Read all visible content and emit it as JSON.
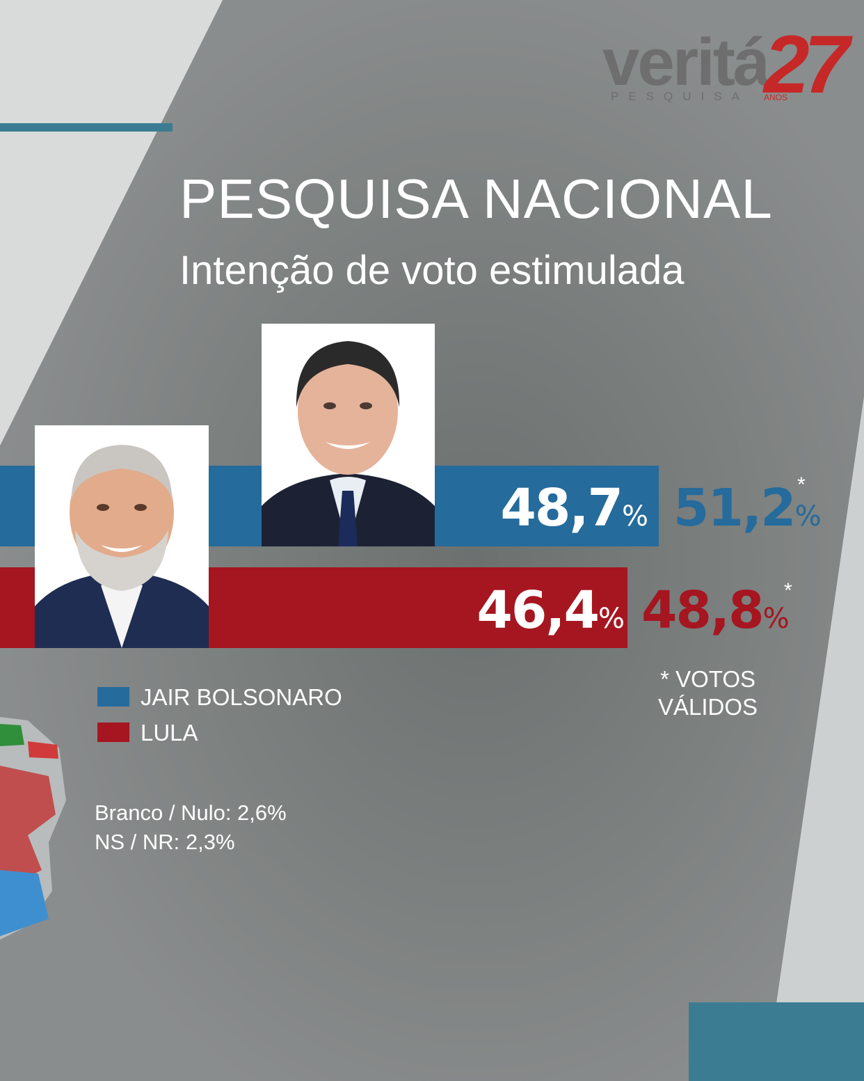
{
  "logo": {
    "brand": "veritá",
    "sub": "PESQUISA",
    "years": "27",
    "years_label": "ANOS"
  },
  "header": {
    "title": "PESQUISA NACIONAL",
    "subtitle": "Intenção de voto estimulada"
  },
  "chart_data": {
    "type": "bar",
    "title": "PESQUISA NACIONAL",
    "subtitle": "Intenção de voto estimulada",
    "categories": [
      "JAIR BOLSONARO",
      "LULA"
    ],
    "series": [
      {
        "values": [
          48.7,
          46.4
        ]
      },
      {
        "name": "* VOTOS VÁLIDOS",
        "values": [
          51.2,
          48.8
        ]
      }
    ],
    "labels": {
      "bolsonaro_total": "48,7",
      "bolsonaro_valid": "51,2",
      "lula_total": "46,4",
      "lula_valid": "48,8"
    },
    "percent_sign": "%",
    "valid_marker": "*",
    "legend": [
      {
        "label": "JAIR BOLSONARO",
        "color": "#256b9c"
      },
      {
        "label": "LULA",
        "color": "#a51620"
      }
    ],
    "colors": {
      "bolsonaro": "#256b9c",
      "lula": "#a51620"
    }
  },
  "footnote": {
    "line1": "* VOTOS",
    "line2": "VÁLIDOS"
  },
  "notes": {
    "blank_null": "Branco / Nulo: 2,6%",
    "dk_nr": "NS / NR: 2,3%"
  }
}
